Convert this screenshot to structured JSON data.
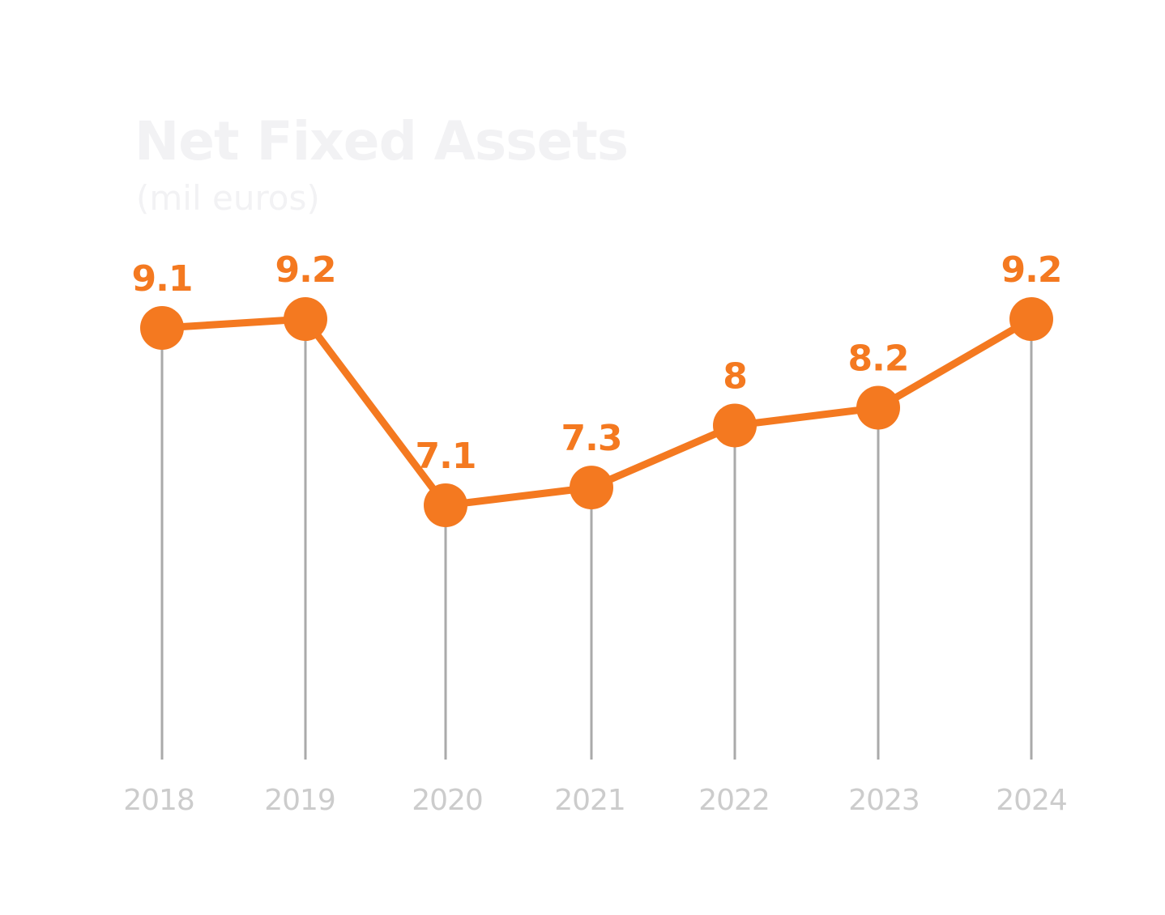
{
  "chart_data": {
    "type": "line",
    "title": "Net Fixed Assets",
    "subtitle": "(mil euros)",
    "categories": [
      "2018",
      "2019",
      "2020",
      "2021",
      "2022",
      "2023",
      "2024"
    ],
    "series": [
      {
        "values": [
          9.1,
          9.2,
          7.1,
          7.3,
          8,
          8.2,
          9.2
        ],
        "labels": [
          "9.1",
          "9.2",
          "7.1",
          "7.3",
          "8",
          "8.2",
          "9.2"
        ]
      }
    ],
    "grid": false,
    "legend": "none"
  },
  "colors": {
    "line": "#f47920",
    "marker": "#f47920",
    "data_label": "#f47920",
    "drop_line": "#aaaaaa",
    "tick_label": "#cccccc",
    "title": "#f2f2f4"
  }
}
